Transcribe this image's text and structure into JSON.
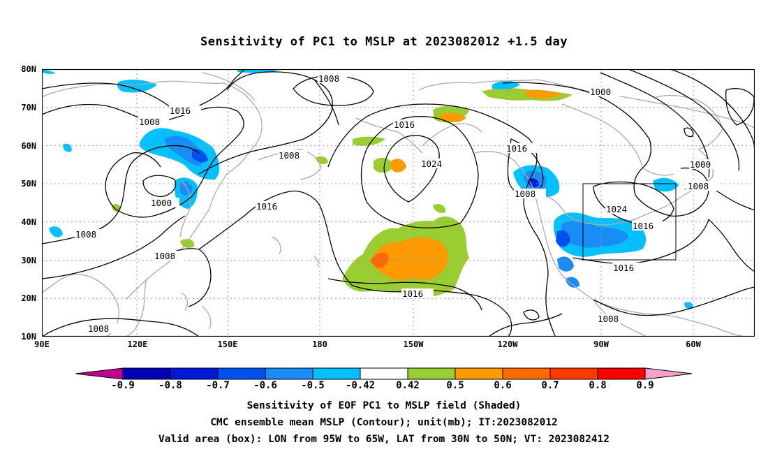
{
  "title": "Sensitivity of PC1 to MSLP at 2023082012 +1.5 day",
  "lat_labels": [
    "80N",
    "70N",
    "60N",
    "50N",
    "40N",
    "30N",
    "20N",
    "10N"
  ],
  "lon_labels": [
    "90E",
    "120E",
    "150E",
    "180",
    "150W",
    "120W",
    "90W",
    "60W"
  ],
  "contour_labels": [
    "1008",
    "1016",
    "1008",
    "1016",
    "1008",
    "1000",
    "1008",
    "1008",
    "1008",
    "1016",
    "1024",
    "1016",
    "1016",
    "1008",
    "1024",
    "1016",
    "1016",
    "1000",
    "1000",
    "1008",
    "1008"
  ],
  "colorbar": {
    "labels": [
      "-0.9",
      "-0.8",
      "-0.7",
      "-0.6",
      "-0.5",
      "-0.42",
      "0.42",
      "0.5",
      "0.6",
      "0.7",
      "0.8",
      "0.9"
    ],
    "colors": [
      "#c0008f",
      "#0000b4",
      "#0018d8",
      "#0050f0",
      "#1a8cf5",
      "#05c0ff",
      "#ffffff",
      "#9acd32",
      "#ff9a00",
      "#ff6a00",
      "#ff3a00",
      "#ff0000",
      "#f8a0c8"
    ]
  },
  "valid_box": {
    "lon_from": "95W",
    "lon_to": "65W",
    "lat_from": "30N",
    "lat_to": "50N"
  },
  "captions": [
    "Sensitivity of EOF PC1 to MSLP field (Shaded)",
    "CMC ensemble mean MSLP (Contour); unit(mb); IT:2023082012",
    "Valid area (box): LON from 95W to 65W, LAT from 30N to 50N; VT: 2023082412"
  ]
}
